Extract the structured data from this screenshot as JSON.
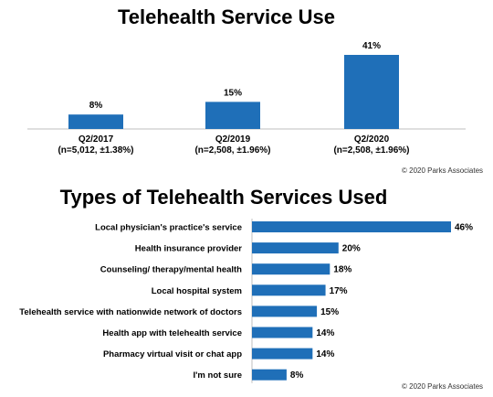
{
  "chart_data": [
    {
      "type": "bar",
      "title": "Telehealth Service Use",
      "categories": [
        "Q2/2017",
        "Q2/2019",
        "Q2/2020"
      ],
      "sublabels": [
        "(n=5,012, ±1.38%)",
        "(n=2,508, ±1.96%)",
        "(n=2,508, ±1.96%)"
      ],
      "values": [
        8,
        15,
        41
      ],
      "value_labels": [
        "8%",
        "15%",
        "41%"
      ],
      "ylim": [
        0,
        41
      ],
      "grid": false,
      "bar_color": "#1f6fb8",
      "credit": "© 2020 Parks Associates"
    },
    {
      "type": "bar",
      "orientation": "horizontal",
      "title": "Types of Telehealth Services Used",
      "categories": [
        "Local physician's practice's service",
        "Health insurance provider",
        "Counseling/ therapy/mental health",
        "Local hospital system",
        "Telehealth service with nationwide network of doctors",
        "Health app with telehealth service",
        "Pharmacy virtual visit or chat app",
        "I'm not sure"
      ],
      "values": [
        46,
        20,
        18,
        17,
        15,
        14,
        14,
        8
      ],
      "value_labels": [
        "46%",
        "20%",
        "18%",
        "17%",
        "15%",
        "14%",
        "14%",
        "8%"
      ],
      "xlim": [
        0,
        46
      ],
      "grid": false,
      "bar_color": "#1f6fb8",
      "credit": "© 2020 Parks Associates"
    }
  ]
}
